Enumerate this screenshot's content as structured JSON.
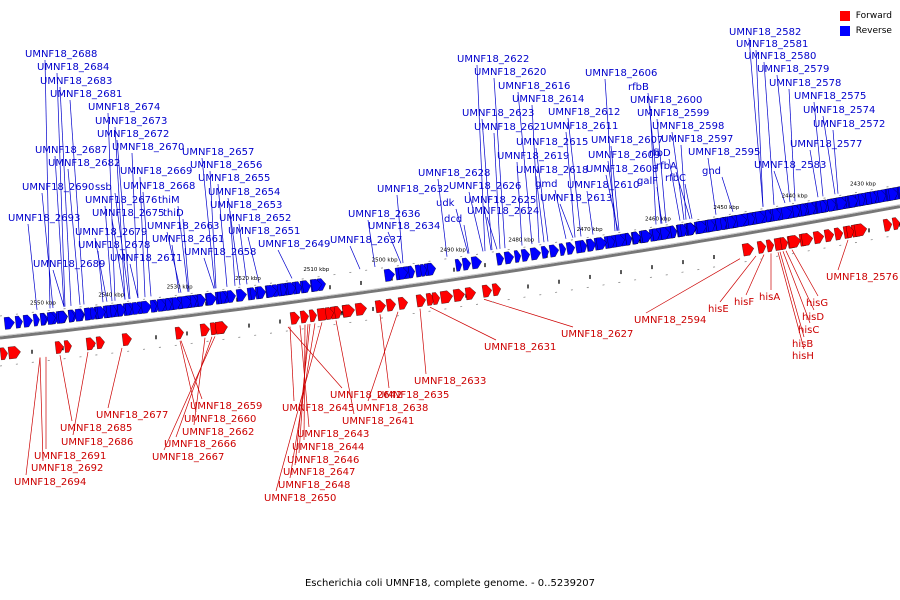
{
  "caption": "Escherichia coli UMNF18, complete genome. - 0..5239207",
  "legend": [
    {
      "label": "Forward",
      "color": "#ff0000"
    },
    {
      "label": "Reverse",
      "color": "#0000ff"
    }
  ],
  "colors": {
    "forward": "#ff0000",
    "reverse": "#0000ff",
    "backbone": "#777777"
  },
  "kbp_labels": [
    "2550 kbp",
    "2540 kbp",
    "2530 kbp",
    "2520 kbp",
    "2510 kbp",
    "2500 kbp",
    "2490 kbp",
    "2480 kbp",
    "2470 kbp",
    "2460 kbp",
    "2450 kbp",
    "2440 kbp",
    "2430 kbp"
  ],
  "reverse_labels": [
    "UMNF18_2688",
    "UMNF18_2684",
    "UMNF18_2683",
    "UMNF18_2681",
    "UMNF18_2674",
    "UMNF18_2673",
    "UMNF18_2672",
    "UMNF18_2670",
    "UMNF18_2687",
    "UMNF18_2682",
    "UMNF18_2669",
    "UMNF18_2668",
    "UMNF18_2690",
    "ssb",
    "UMNF18_2676",
    "thiM",
    "UMNF18_2675",
    "thiD",
    "UMNF18_2693",
    "UMNF18_2679",
    "UMNF18_2678",
    "UMNF18_2671",
    "UMNF18_2689",
    "UMNF18_2663",
    "UMNF18_2661",
    "UMNF18_2658",
    "UMNF18_2657",
    "UMNF18_2656",
    "UMNF18_2655",
    "UMNF18_2654",
    "UMNF18_2653",
    "UMNF18_2652",
    "UMNF18_2651",
    "UMNF18_2649",
    "UMNF18_2636",
    "UMNF18_2637",
    "UMNF18_2634",
    "UMNF18_2632",
    "UMNF18_2628",
    "udk",
    "dcd",
    "UMNF18_2622",
    "UMNF18_2620",
    "UMNF18_2616",
    "UMNF18_2614",
    "UMNF18_2623",
    "UMNF18_2612",
    "UMNF18_2621",
    "UMNF18_2611",
    "UMNF18_2615",
    "UMNF18_2619",
    "UMNF18_2618",
    "gmd",
    "UMNF18_2626",
    "UMNF18_2625",
    "UMNF18_2624",
    "UMNF18_2613",
    "UMNF18_2610",
    "UMNF18_2609",
    "UMNF18_2608",
    "galF",
    "UMNF18_2607",
    "rfbD",
    "rfbA",
    "rfbC",
    "UMNF18_2606",
    "rfbB",
    "UMNF18_2600",
    "UMNF18_2599",
    "UMNF18_2598",
    "UMNF18_2597",
    "UMNF18_2595",
    "gnd",
    "UMNF18_2582",
    "UMNF18_2581",
    "UMNF18_2580",
    "UMNF18_2579",
    "UMNF18_2578",
    "UMNF18_2575",
    "UMNF18_2574",
    "UMNF18_2572",
    "UMNF18_2577",
    "UMNF18_2583"
  ],
  "forward_labels": [
    "UMNF18_2677",
    "UMNF18_2685",
    "UMNF18_2686",
    "UMNF18_2691",
    "UMNF18_2692",
    "UMNF18_2694",
    "UMNF18_2659",
    "UMNF18_2660",
    "UMNF18_2662",
    "UMNF18_2666",
    "UMNF18_2667",
    "UMNF18_2642",
    "UMNF18_2645",
    "UMNF18_2641",
    "UMNF18_2643",
    "UMNF18_2644",
    "UMNF18_2646",
    "UMNF18_2647",
    "UMNF18_2648",
    "UMNF18_2650",
    "UMNF18_2635",
    "UMNF18_2638",
    "UMNF18_2633",
    "UMNF18_2631",
    "UMNF18_2627",
    "UMNF18_2594",
    "hisE",
    "hisF",
    "hisA",
    "hisG",
    "hisD",
    "hisC",
    "hisB",
    "hisH",
    "UMNF18_2576"
  ]
}
